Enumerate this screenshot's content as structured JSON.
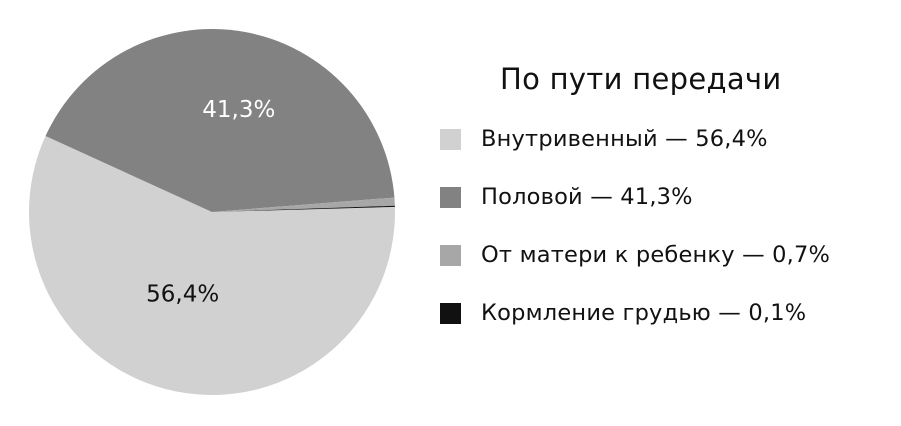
{
  "chart_data": {
    "type": "pie",
    "legend_title": "По пути передачи",
    "legend_position": "right",
    "slices": [
      {
        "label": "Внутривенный — 56,4%",
        "data_label": "56,4%",
        "value": 56.4,
        "color": "#d1d1d1",
        "data_label_color": "#111111"
      },
      {
        "label": "Половой — 41,3%",
        "data_label": "41,3%",
        "value": 41.3,
        "color": "#828282",
        "data_label_color": "#ffffff"
      },
      {
        "label": "От матери к ребенку — 0,7%",
        "data_label": "",
        "value": 0.7,
        "color": "#a7a7a7",
        "data_label_color": "#111111"
      },
      {
        "label": "Кормление грудью — 0,1%",
        "data_label": "",
        "value": 0.1,
        "color": "#111111",
        "data_label_color": "#ffffff"
      }
    ]
  }
}
